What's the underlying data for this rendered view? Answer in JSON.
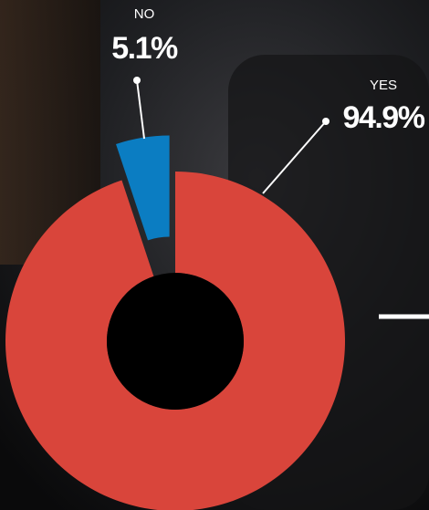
{
  "chart_data": {
    "type": "pie",
    "categories": [
      "NO",
      "YES"
    ],
    "values": [
      5.1,
      94.9
    ],
    "value_labels": [
      "5.1%",
      "94.9%"
    ],
    "colors": [
      "#0b7dc2",
      "#d9453b"
    ]
  }
}
